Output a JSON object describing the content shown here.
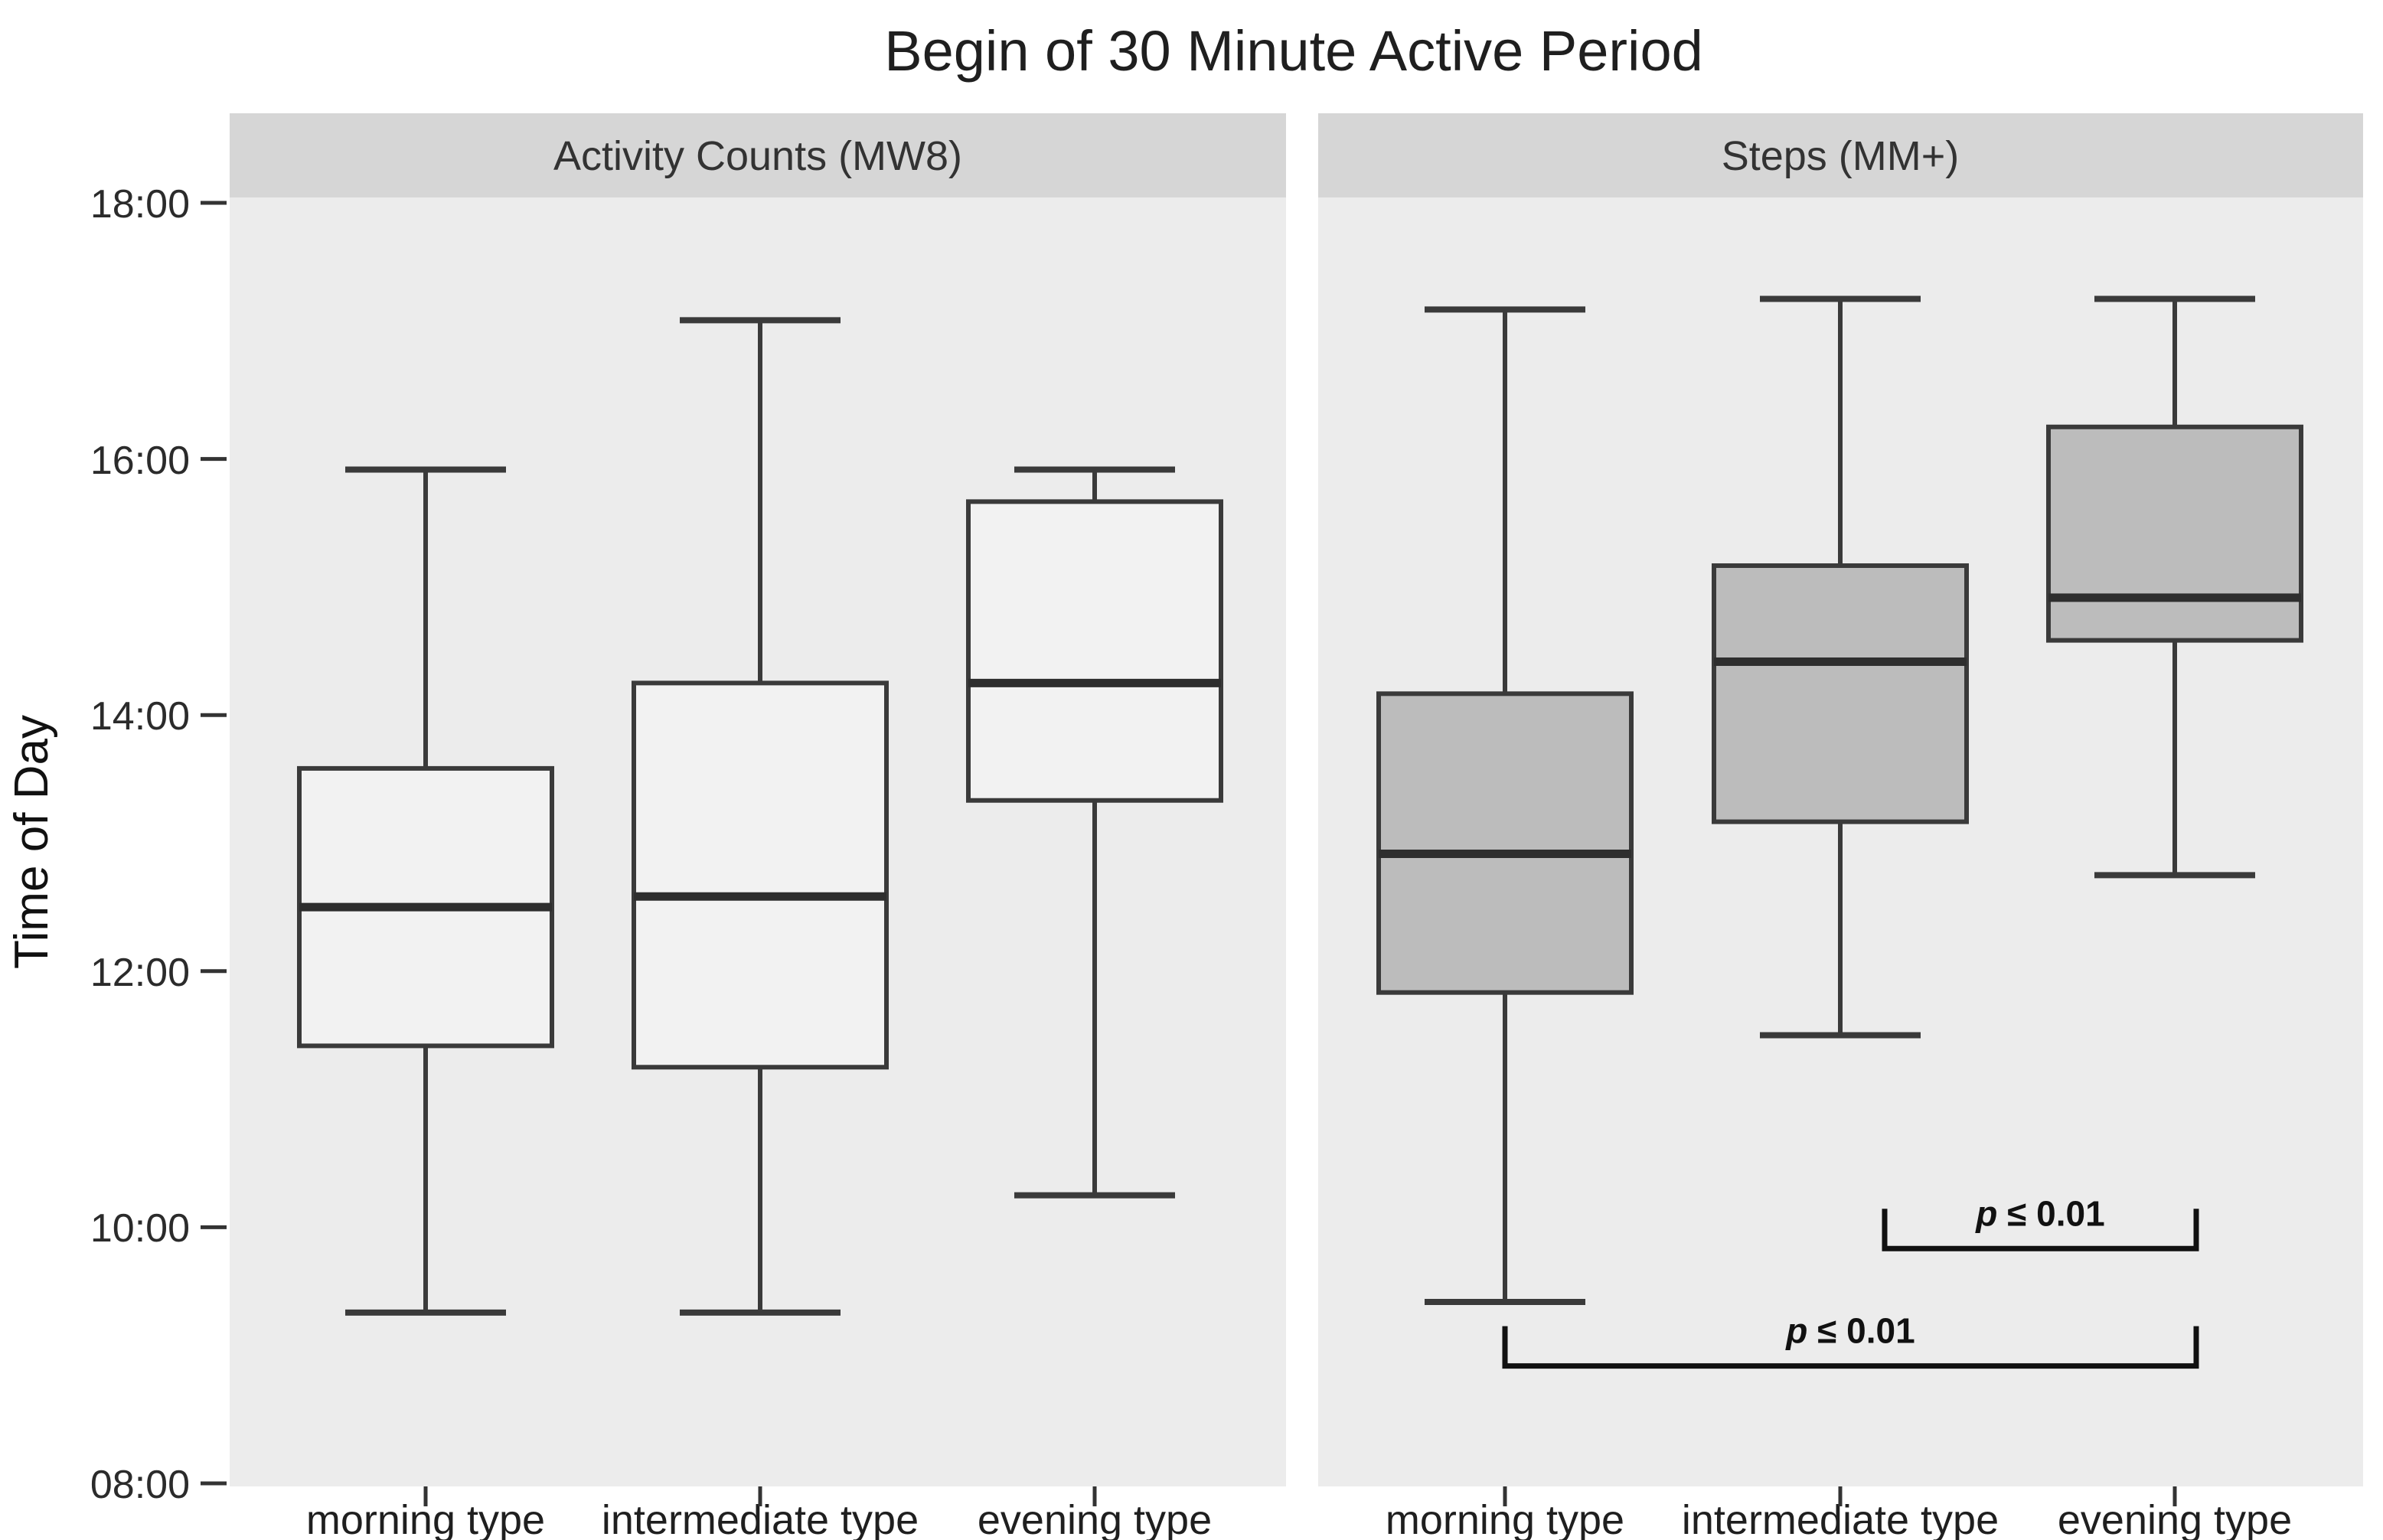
{
  "title": "Begin of 30 Minute Active Period",
  "y_axis": {
    "label": "Time of Day",
    "tick_labels": [
      "18:00",
      "16:00",
      "14:00",
      "12:00",
      "10:00",
      "08:00"
    ],
    "tick_times": [
      "18:00",
      "16:00",
      "14:00",
      "12:00",
      "10:00",
      "08:00"
    ],
    "range": [
      "08:00",
      "18:00"
    ]
  },
  "x_axis": {
    "categories": [
      "morning type",
      "intermediate type",
      "evening type"
    ]
  },
  "chart_data": {
    "type": "boxplot",
    "grid": "off",
    "legend": "none",
    "ylim": [
      "08:00",
      "18:00"
    ],
    "facets": [
      {
        "label": "Activity Counts (MW8)",
        "box_fill": "#f2f2f2",
        "boxes": [
          {
            "category": "morning type",
            "whisker_low": "09:20",
            "q1": "11:25",
            "median": "12:30",
            "q3": "13:35",
            "whisker_high": "15:55"
          },
          {
            "category": "intermediate type",
            "whisker_low": "09:20",
            "q1": "11:15",
            "median": "12:35",
            "q3": "14:15",
            "whisker_high": "17:05"
          },
          {
            "category": "evening type",
            "whisker_low": "10:15",
            "q1": "13:20",
            "median": "14:15",
            "q3": "15:40",
            "whisker_high": "15:55"
          }
        ],
        "significance_brackets": []
      },
      {
        "label": "Steps (MM+)",
        "box_fill": "#bcbcbc",
        "boxes": [
          {
            "category": "morning type",
            "whisker_low": "09:25",
            "q1": "11:50",
            "median": "12:55",
            "q3": "14:10",
            "whisker_high": "17:10"
          },
          {
            "category": "intermediate type",
            "whisker_low": "11:30",
            "q1": "13:10",
            "median": "14:25",
            "q3": "15:10",
            "whisker_high": "17:15"
          },
          {
            "category": "evening type",
            "whisker_low": "12:45",
            "q1": "14:35",
            "median": "14:55",
            "q3": "16:15",
            "whisker_high": "17:15"
          }
        ],
        "significance_brackets": [
          {
            "from": "intermediate type",
            "to": "evening type",
            "label": "p ≤ 0.01",
            "height_time": "09:50"
          },
          {
            "from": "morning type",
            "to": "evening type",
            "label": "p ≤ 0.01",
            "height_time": "08:55"
          }
        ]
      }
    ],
    "colors": {
      "panel_background": "#ececec",
      "strip_background": "#d6d6d6",
      "box_stroke": "#3a3a3a",
      "median_stroke": "#2e2e2e",
      "whisker_stroke": "#3a3a3a",
      "bracket_stroke": "#111111",
      "facet1_box_fill": "#f2f2f2",
      "facet2_box_fill": "#bcbcbc"
    }
  }
}
